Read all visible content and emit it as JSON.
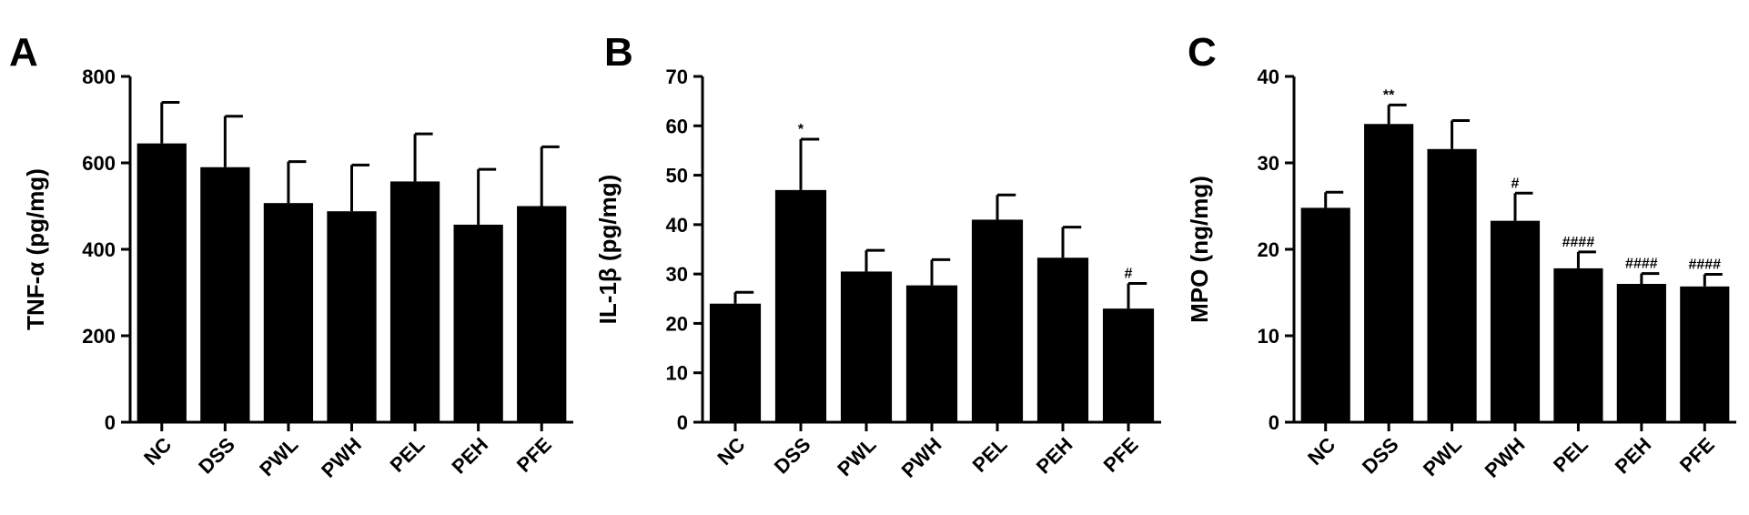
{
  "chart_data": [
    {
      "type": "bar",
      "panel_label": "A",
      "categories": [
        "NC",
        "DSS",
        "PWL",
        "PWH",
        "PEL",
        "PEH",
        "PFE"
      ],
      "values": [
        645,
        590,
        507,
        488,
        557,
        457,
        500
      ],
      "errors": [
        95,
        118,
        96,
        107,
        110,
        128,
        137
      ],
      "significance": [
        "",
        "",
        "",
        "",
        "",
        "",
        ""
      ],
      "title": "",
      "xlabel": "",
      "ylabel": "TNF-α (pg/mg)",
      "ylim": [
        0,
        800
      ],
      "yticks": [
        0,
        200,
        400,
        600,
        800
      ],
      "bar_color": "#000000",
      "grid": false
    },
    {
      "type": "bar",
      "panel_label": "B",
      "categories": [
        "NC",
        "DSS",
        "PWL",
        "PWH",
        "PEL",
        "PEH",
        "PFE"
      ],
      "values": [
        24,
        47,
        30.5,
        27.7,
        41,
        33.3,
        23
      ],
      "errors": [
        2.3,
        10.3,
        4.3,
        5.2,
        5,
        6.2,
        5.1
      ],
      "significance": [
        "",
        "*",
        "",
        "",
        "",
        "",
        "#"
      ],
      "title": "",
      "xlabel": "",
      "ylabel": "IL-1β (pg/mg)",
      "ylim": [
        0,
        70
      ],
      "yticks": [
        0,
        10,
        20,
        30,
        40,
        50,
        60,
        70
      ],
      "bar_color": "#000000",
      "grid": false
    },
    {
      "type": "bar",
      "panel_label": "C",
      "categories": [
        "NC",
        "DSS",
        "PWL",
        "PWH",
        "PEL",
        "PEH",
        "PFE"
      ],
      "values": [
        24.8,
        34.5,
        31.6,
        23.3,
        17.8,
        16,
        15.7
      ],
      "errors": [
        1.8,
        2.2,
        3.3,
        3.2,
        1.9,
        1.2,
        1.4
      ],
      "significance": [
        "",
        "**",
        "",
        "#",
        "####",
        "####",
        "####"
      ],
      "title": "",
      "xlabel": "",
      "ylabel": "MPO (ng/mg)",
      "ylim": [
        0,
        40
      ],
      "yticks": [
        0,
        10,
        20,
        30,
        40
      ],
      "bar_color": "#000000",
      "grid": false
    }
  ]
}
